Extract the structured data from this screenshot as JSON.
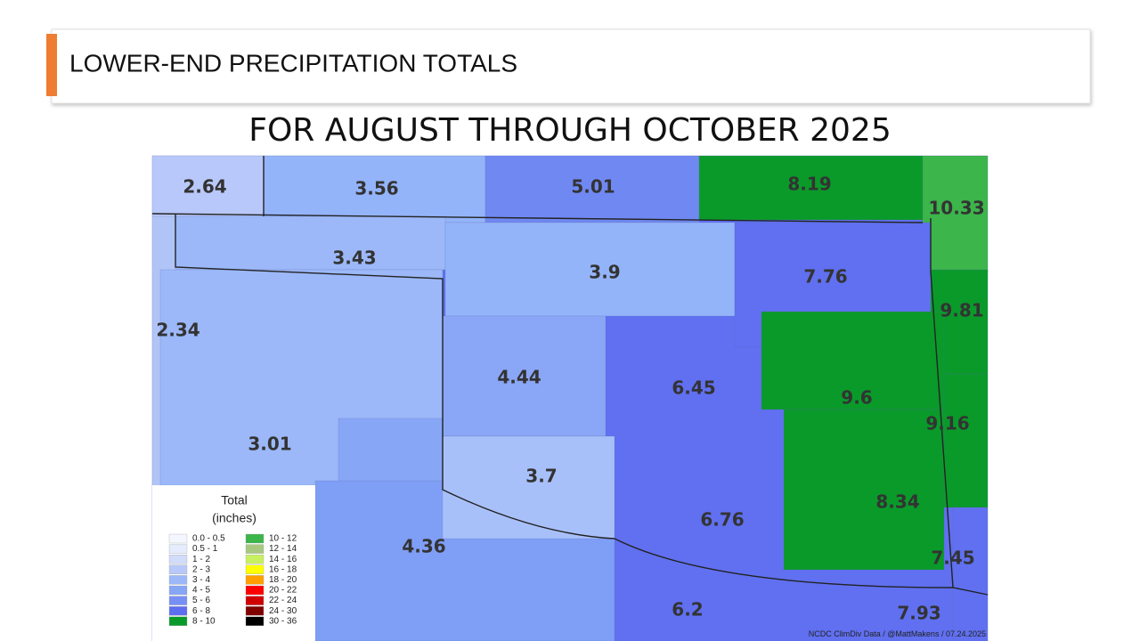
{
  "header": {
    "title": "LOWER-END PRECIPITATION TOTALS"
  },
  "map": {
    "title": "FOR AUGUST THROUGH OCTOBER 2025",
    "labels": [
      "2.64",
      "3.56",
      "5.01",
      "8.19",
      "10.33",
      "3.43",
      "3.9",
      "7.76",
      "9.81",
      "2.34",
      "4.44",
      "6.45",
      "9.6",
      "9.16",
      "3.01",
      "3.7",
      "8.34",
      "6.76",
      "4.36",
      "7.45",
      "6.2",
      "7.93"
    ],
    "credit": "NCDC ClimDiv Data / @MattMakens / 07.24.2025"
  },
  "legend": {
    "title": "Total",
    "subtitle": "(inches)",
    "entries": [
      {
        "label": "0.0 - 0.5",
        "color": "#f4f7ff"
      },
      {
        "label": "0.5 - 1",
        "color": "#e4ecfd"
      },
      {
        "label": "1 - 2",
        "color": "#d0dcfa"
      },
      {
        "label": "2 - 3",
        "color": "#b8c8f8"
      },
      {
        "label": "3 - 4",
        "color": "#9cb8f8"
      },
      {
        "label": "4 - 5",
        "color": "#88a6f6"
      },
      {
        "label": "5 - 6",
        "color": "#7890f4"
      },
      {
        "label": "6 - 8",
        "color": "#5e6ef0"
      },
      {
        "label": "8 - 10",
        "color": "#0a9a2a"
      },
      {
        "label": "10 - 12",
        "color": "#3cb54a"
      },
      {
        "label": "12 - 14",
        "color": "#a8c880"
      },
      {
        "label": "14 - 16",
        "color": "#c8f060"
      },
      {
        "label": "16 - 18",
        "color": "#ffff00"
      },
      {
        "label": "18 - 20",
        "color": "#ffa000"
      },
      {
        "label": "20 - 22",
        "color": "#ff0000"
      },
      {
        "label": "22 - 24",
        "color": "#d00000"
      },
      {
        "label": "24 - 30",
        "color": "#800000"
      },
      {
        "label": "30 - 36",
        "color": "#000000"
      }
    ]
  }
}
